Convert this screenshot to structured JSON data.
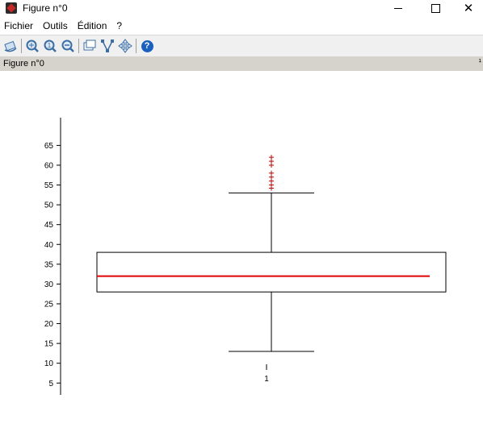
{
  "window": {
    "title": "Figure n°0",
    "icons": [
      "app-icon",
      "minimize-icon",
      "maximize-icon",
      "close-icon"
    ]
  },
  "menu": {
    "items": [
      "Fichier",
      "Outils",
      "Édition",
      "?"
    ]
  },
  "toolbar": {
    "icons": [
      "rotate-icon",
      "zoom-icon",
      "zoom-in-icon",
      "zoom-out-icon",
      "datatip-icon",
      "edit-curve-icon",
      "pan-icon",
      "help-icon"
    ],
    "help_glyph": "?"
  },
  "figure_bar": {
    "label": "Figure n°0",
    "dock_glyph": "¹"
  },
  "chart_data": {
    "type": "boxplot",
    "xlabel": "",
    "ylabel": "",
    "ylim": [
      2,
      72
    ],
    "yticks": [
      5,
      10,
      15,
      20,
      25,
      30,
      35,
      40,
      45,
      50,
      55,
      60,
      65
    ],
    "categories": [
      "1"
    ],
    "boxes": [
      {
        "category": "1",
        "whisker_low": 13,
        "q1": 28,
        "median": 32,
        "q3": 38,
        "whisker_high": 53,
        "outliers": [
          54.2,
          55,
          56,
          57,
          58,
          60,
          61,
          62
        ]
      }
    ],
    "colors": {
      "box": "#000000",
      "median": "#e00000",
      "outliers": "#c00000"
    }
  }
}
